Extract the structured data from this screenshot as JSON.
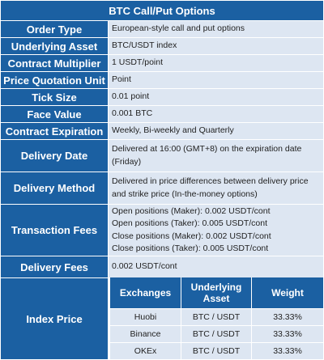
{
  "title": "BTC Call/Put Options",
  "rows": [
    {
      "key": "Order Type",
      "value": [
        "European-style call and put options"
      ]
    },
    {
      "key": "Underlying Asset",
      "value": [
        "BTC/USDT index"
      ]
    },
    {
      "key": "Contract Multiplier",
      "value": [
        "1 USDT/point"
      ]
    },
    {
      "key": "Price Quotation Unit",
      "value": [
        "Point"
      ]
    },
    {
      "key": "Tick Size",
      "value": [
        "0.01 point"
      ]
    },
    {
      "key": "Face Value",
      "value": [
        "0.001 BTC"
      ]
    },
    {
      "key": "Contract Expiration",
      "value": [
        "Weekly, Bi-weekly and Quarterly"
      ]
    },
    {
      "key": "Delivery Date",
      "value": [
        "Delivered at 16:00 (GMT+8) on the expiration date (Friday)"
      ]
    },
    {
      "key": "Delivery Method",
      "value": [
        "Delivered in price differences between delivery price and strike price (In-the-money options)"
      ]
    },
    {
      "key": "Transaction Fees",
      "value": [
        "Open positions (Maker): 0.002 USDT/cont",
        "Open positions (Taker): 0.005 USDT/cont",
        "Close positions (Maker): 0.002 USDT/cont",
        "Close positions (Taker): 0.005 USDT/cont"
      ]
    },
    {
      "key": "Delivery Fees",
      "value": [
        "0.002 USDT/cont"
      ]
    }
  ],
  "index_price": {
    "key": "Index Price",
    "headers": [
      "Exchanges",
      "Underlying Asset",
      "Weight"
    ],
    "rows": [
      [
        "Huobi",
        "BTC / USDT",
        "33.33%"
      ],
      [
        "Binance",
        "BTC / USDT",
        "33.33%"
      ],
      [
        "OKEx",
        "BTC / USDT",
        "33.33%"
      ]
    ]
  }
}
